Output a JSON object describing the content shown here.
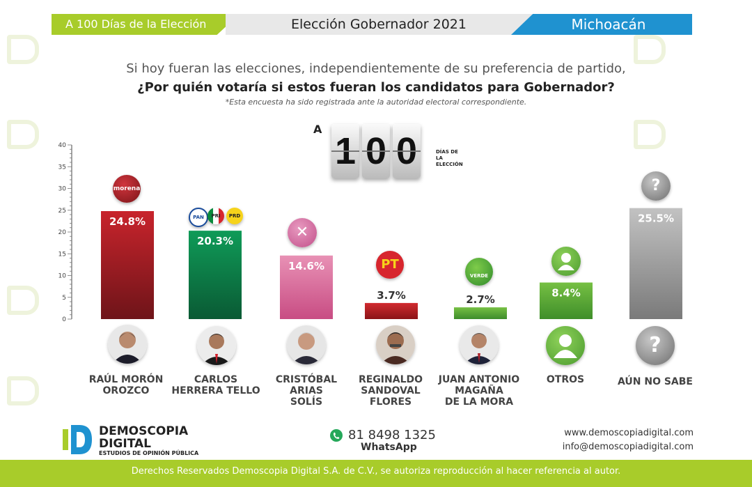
{
  "header": {
    "left": "A 100 Días de la Elección",
    "center": "Elección Gobernador 2021",
    "right": "Michoacán"
  },
  "question": {
    "line1": "Si hoy fueran las elecciones, independientemente de su preferencia de partido,",
    "line2": "¿Por quién votaría si estos fueran los candidatos para Gobernador?",
    "note": "*Esta encuesta ha sido registrada ante la autoridad electoral correspondiente."
  },
  "countdown": {
    "prefix": "A",
    "digits": [
      "1",
      "0",
      "0"
    ],
    "caption_line1": "DÍAS DE",
    "caption_line2": "LA ELECCIÓN"
  },
  "chart_data": {
    "type": "bar",
    "categories": [
      "RAÚL MORÓN OROZCO",
      "CARLOS HERRERA TELLO",
      "CRISTÓBAL ARIAS SOLÍS",
      "REGINALDO SANDOVAL FLORES",
      "JUAN ANTONIO MAGAÑA DE LA MORA",
      "OTROS",
      "AÚN NO SABE"
    ],
    "values": [
      24.8,
      20.3,
      14.6,
      3.7,
      2.7,
      8.4,
      25.5
    ],
    "value_labels": [
      "24.8%",
      "20.3%",
      "14.6%",
      "3.7%",
      "2.7%",
      "8.4%",
      "25.5%"
    ],
    "yticks": [
      0,
      5,
      10,
      15,
      20,
      25,
      30,
      35,
      40
    ],
    "ylim": [
      0,
      40
    ],
    "grid": false,
    "colors": [
      [
        "#c8242c",
        "#6e1419"
      ],
      [
        "#0f9b58",
        "#0a5a34"
      ],
      [
        "#e891b5",
        "#c84c83"
      ],
      [
        "#d12a2f",
        "#8a1418"
      ],
      [
        "#76c043",
        "#3e8c2c"
      ],
      [
        "#76c043",
        "#3f8e2a"
      ],
      [
        "#c2c2c2",
        "#7a7a7a"
      ]
    ]
  },
  "candidates": [
    {
      "name_lines": [
        "RAÚL MORÓN",
        "OROZCO"
      ],
      "party_icon": "morena-logo",
      "party_text": "morena"
    },
    {
      "name_lines": [
        "CARLOS",
        "HERRERA TELLO"
      ],
      "party_icon": "pan-pri-prd-logos",
      "party_texts": [
        "PAN",
        "PRI",
        "PRD"
      ]
    },
    {
      "name_lines": [
        "CRISTÓBAL",
        "ARIAS",
        "SOLÍS"
      ],
      "party_icon": "fuerza-mexico-logo",
      "party_text": "✕"
    },
    {
      "name_lines": [
        "REGINALDO",
        "SANDOVAL",
        "FLORES"
      ],
      "party_icon": "pt-logo",
      "party_text": "PT"
    },
    {
      "name_lines": [
        "JUAN ANTONIO",
        "MAGAÑA",
        "DE LA MORA"
      ],
      "party_icon": "pvem-logo",
      "party_text": "VERDE"
    },
    {
      "name_lines": [
        "OTROS"
      ],
      "party_icon": "person-icon"
    },
    {
      "name_lines": [
        "AÚN NO SABE"
      ],
      "party_icon": "question-icon",
      "party_text": "?"
    }
  ],
  "brand": {
    "line1": "DEMOSCOPIA",
    "line2": "DIGITAL",
    "tagline": "ESTUDIOS DE OPINIÓN PÚBLICA",
    "accent": "#a8cc2a",
    "blue": "#1f92d0"
  },
  "contact": {
    "phone": "81 8498 1325",
    "whatsapp": "WhatsApp",
    "website": "www.demoscopiadigital.com",
    "email": "info@demoscopiadigital.com"
  },
  "footer": {
    "text": "Derechos Reservados Demoscopia Digital S.A. de C.V., se autoriza reproducción al hacer referencia al autor."
  }
}
